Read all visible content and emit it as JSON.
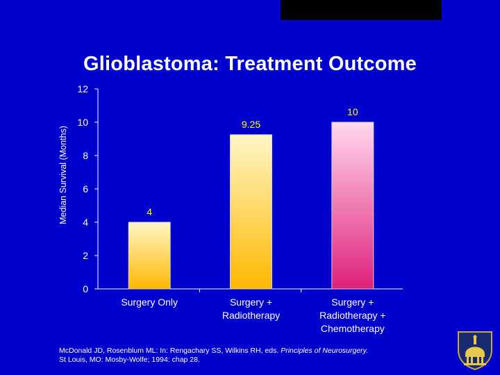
{
  "slide": {
    "title": "Glioblastoma:  Treatment Outcome",
    "citation_line1_a": "McDonald JD, Rosenblum ML: In: Rengachary SS, Wilkins RH, eds. ",
    "citation_line1_b": "Principles of Neurosurgery.",
    "citation_line2": "St Louis, MO: Mosby-Wolfe; 1994: chap 28.",
    "logo_icon": "dome-shield-icon"
  },
  "chart_data": {
    "type": "bar",
    "title": "Glioblastoma:  Treatment Outcome",
    "ylabel": "Median Survival (Months)",
    "xlabel": "",
    "ylim": [
      0,
      12
    ],
    "yticks": [
      "0",
      "2",
      "4",
      "6",
      "8",
      "10",
      "12"
    ],
    "categories": [
      [
        "Surgery Only"
      ],
      [
        "Surgery +",
        "Radiotherapy"
      ],
      [
        "Surgery +",
        "Radiotherapy +",
        "Chemotherapy"
      ]
    ],
    "values": [
      4,
      9.25,
      10
    ],
    "value_labels": [
      "4",
      "9.25",
      "10"
    ],
    "colors": {
      "background": "#0000cc",
      "axis": "#ffffff",
      "data_label": "#ffff00",
      "bar1_top": "#fff6c8",
      "bar1_bottom": "#ffb800",
      "bar2_top": "#fff6c8",
      "bar2_bottom": "#ffb800",
      "bar3_top": "#ffd8ee",
      "bar3_bottom": "#e0207a"
    },
    "grid": false,
    "legend": "none"
  }
}
